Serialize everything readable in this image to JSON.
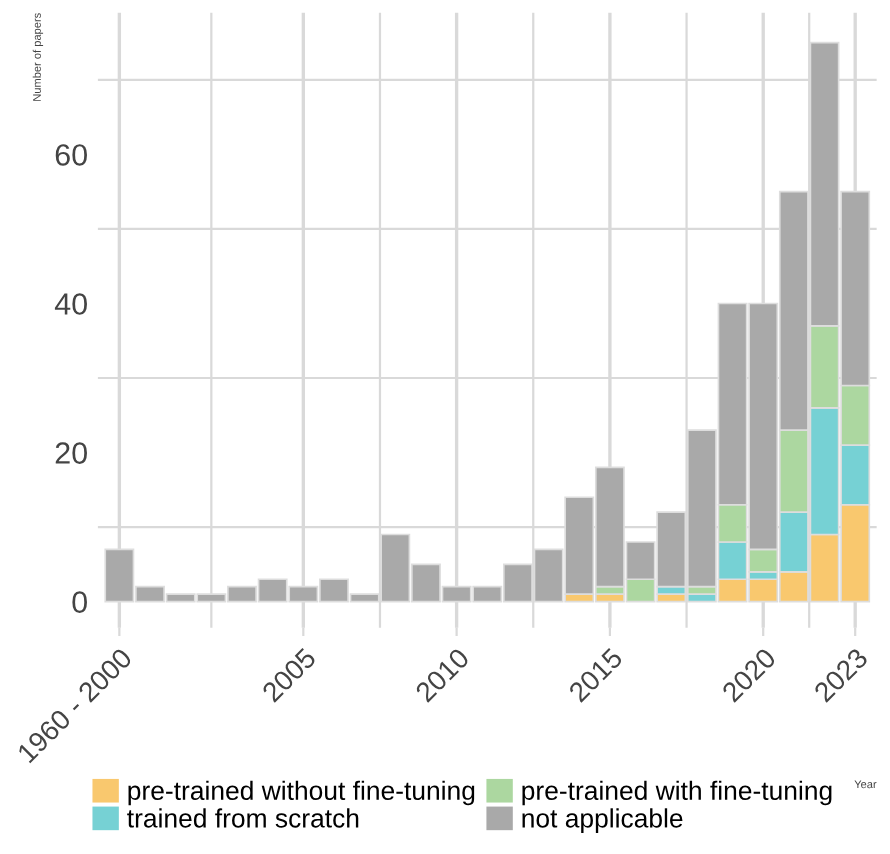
{
  "chart_data": {
    "type": "bar",
    "stacked": true,
    "xlabel": "Year",
    "ylabel": "Number of papers",
    "categories": [
      "1960 - 2000",
      null,
      null,
      null,
      null,
      null,
      "2005",
      null,
      null,
      null,
      null,
      "2010",
      null,
      null,
      null,
      null,
      "2015",
      null,
      null,
      null,
      null,
      "2020",
      null,
      null,
      "2023"
    ],
    "series": [
      {
        "name": "pre-trained without fine-tuning",
        "color": "#f9c86e",
        "values": [
          null,
          null,
          null,
          null,
          null,
          null,
          null,
          null,
          null,
          null,
          null,
          null,
          null,
          null,
          null,
          1,
          1,
          null,
          1,
          null,
          3,
          3,
          4,
          9,
          13
        ]
      },
      {
        "name": "trained from scratch",
        "color": "#76d1d4",
        "values": [
          null,
          null,
          null,
          null,
          null,
          null,
          null,
          null,
          null,
          null,
          null,
          null,
          null,
          null,
          null,
          null,
          null,
          null,
          1,
          1,
          5,
          1,
          8,
          17,
          8
        ]
      },
      {
        "name": "pre-trained with fine-tuning",
        "color": "#acd7a0",
        "values": [
          null,
          null,
          null,
          null,
          null,
          null,
          null,
          null,
          null,
          null,
          null,
          null,
          null,
          null,
          null,
          null,
          1,
          3,
          null,
          1,
          5,
          3,
          11,
          11,
          8
        ]
      },
      {
        "name": "not applicable",
        "color": "#a9a9a9",
        "values": [
          7,
          2,
          1,
          1,
          2,
          3,
          2,
          3,
          1,
          9,
          5,
          2,
          2,
          5,
          7,
          13,
          16,
          5,
          10,
          21,
          27,
          33,
          32,
          38,
          26
        ]
      }
    ],
    "ylim": [
      -3.5,
      79
    ],
    "yticks": [
      0,
      20,
      40,
      60
    ],
    "grid": true,
    "legend": "bottom"
  }
}
